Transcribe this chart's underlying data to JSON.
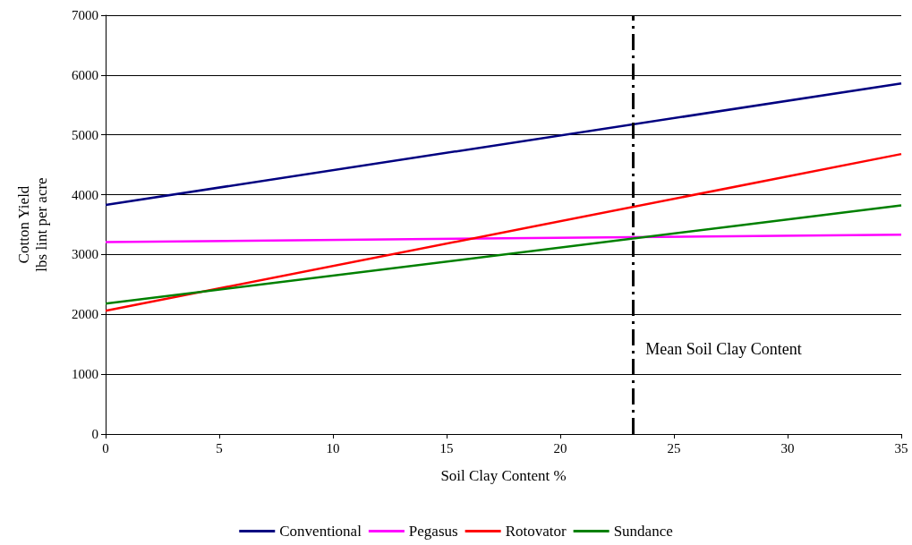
{
  "chart_data": {
    "type": "line",
    "xlabel": "Soil Clay Content %",
    "ylabel": "Cotton Yield\nlbs lint per acre",
    "xlim": [
      0,
      35
    ],
    "xticks": [
      0,
      5,
      10,
      15,
      20,
      25,
      30,
      35
    ],
    "ylim": [
      0,
      7000
    ],
    "yticks": [
      0,
      1000,
      2000,
      3000,
      4000,
      5000,
      6000,
      7000
    ],
    "x": [
      0,
      35
    ],
    "series": [
      {
        "name": "Conventional",
        "color": "#000080",
        "values": [
          3830,
          5860
        ]
      },
      {
        "name": "Pegasus",
        "color": "#ff00ff",
        "values": [
          3210,
          3330
        ]
      },
      {
        "name": "Rotovator",
        "color": "#ff0000",
        "values": [
          2060,
          4680
        ]
      },
      {
        "name": "Sundance",
        "color": "#008000",
        "values": [
          2180,
          3820
        ]
      }
    ],
    "ref_lines": [
      {
        "axis": "x",
        "value": 23.2,
        "label": "Mean Soil Clay Content",
        "color": "#000000",
        "line_style": "dashed"
      }
    ],
    "grid": "y",
    "legend": "bottom",
    "marker": "none",
    "line_style": "solid"
  }
}
